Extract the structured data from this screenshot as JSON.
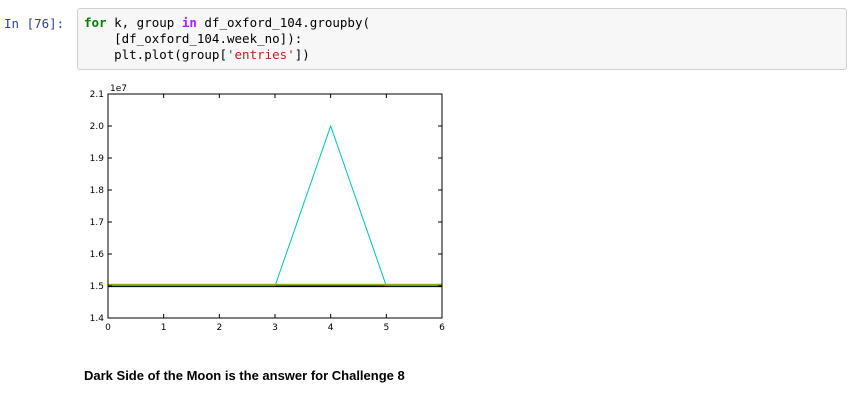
{
  "cell": {
    "prompt": "In [76]:",
    "code_lines": [
      [
        {
          "t": "for",
          "c": "kw"
        },
        {
          "t": " k, group ",
          "c": ""
        },
        {
          "t": "in",
          "c": "kw-in"
        },
        {
          "t": " df_oxford_104.groupby(",
          "c": ""
        }
      ],
      [
        {
          "t": "    [df_oxford_104.week_no]):",
          "c": ""
        }
      ],
      [
        {
          "t": "    plt.plot(group[",
          "c": ""
        },
        {
          "t": "'entries'",
          "c": "str"
        },
        {
          "t": "])",
          "c": ""
        }
      ]
    ]
  },
  "chart_data": {
    "type": "line",
    "exponent_label": "1e7",
    "xlim": [
      0,
      6
    ],
    "ylim": [
      1.4,
      2.1
    ],
    "x_ticks": [
      "0",
      "1",
      "2",
      "3",
      "4",
      "5",
      "6"
    ],
    "y_ticks": [
      "1.4",
      "1.5",
      "1.6",
      "1.7",
      "1.8",
      "1.9",
      "2.0",
      "2.1"
    ],
    "x": [
      0,
      1,
      2,
      3,
      4,
      5,
      6
    ],
    "series": [
      {
        "color": "#0000ff",
        "values": [
          1.5,
          1.5,
          1.5,
          1.5,
          1.5,
          1.5,
          1.505
        ]
      },
      {
        "color": "#008000",
        "values": [
          1.505,
          1.505,
          1.505,
          1.505,
          1.505,
          1.505,
          1.505
        ]
      },
      {
        "color": "#ff0000",
        "values": [
          1.502,
          1.502,
          1.502,
          1.502,
          1.502,
          1.502,
          1.502
        ]
      },
      {
        "color": "#00bfbf",
        "values": [
          1.5,
          1.5,
          1.5,
          1.5,
          2.0,
          1.5,
          1.5
        ]
      },
      {
        "color": "#bf00bf",
        "values": [
          1.503,
          1.503,
          1.503,
          1.503,
          1.503,
          1.503,
          1.503
        ]
      },
      {
        "color": "#bfbf00",
        "values": [
          1.504,
          1.504,
          1.504,
          1.504,
          1.504,
          1.504,
          1.504
        ]
      },
      {
        "color": "#000000",
        "values": [
          1.498,
          1.498,
          1.498,
          1.498,
          1.498,
          1.498,
          1.498
        ]
      }
    ]
  },
  "markdown": {
    "text": "Dark Side of the Moon is the answer for Challenge 8"
  }
}
